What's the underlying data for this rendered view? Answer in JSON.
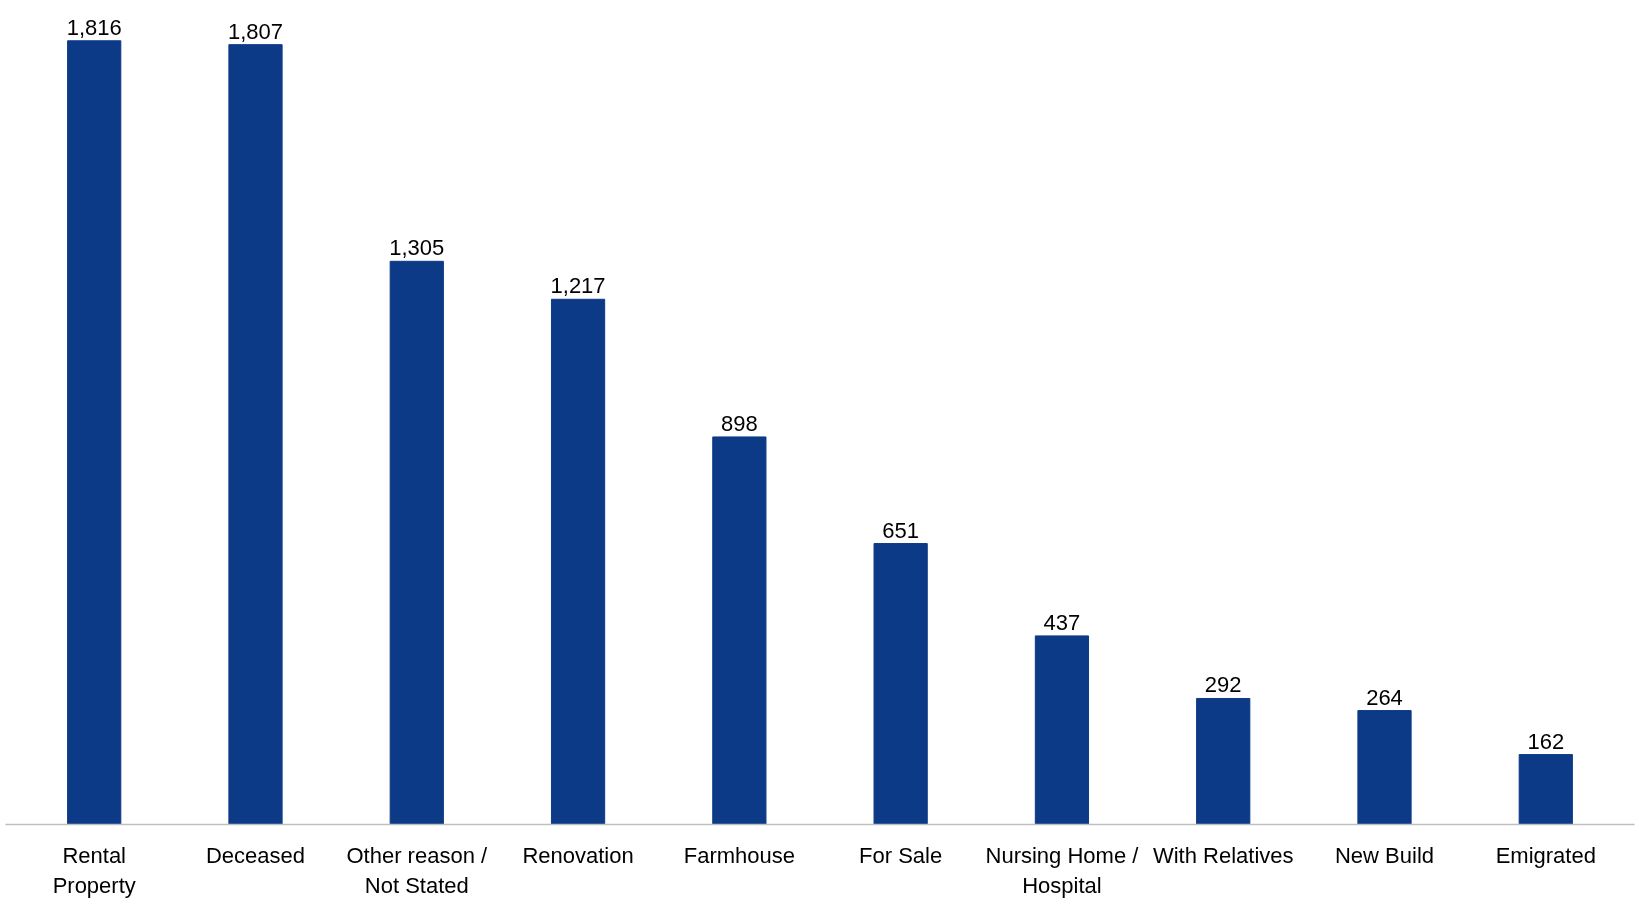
{
  "chart_data": {
    "type": "bar",
    "categories": [
      "Rental Property",
      "Deceased",
      "Other reason / Not Stated",
      "Renovation",
      "Farmhouse",
      "For Sale",
      "Nursing Home / Hospital",
      "With Relatives",
      "New Build",
      "Emigrated"
    ],
    "values": [
      1816,
      1807,
      1305,
      1217,
      898,
      651,
      437,
      292,
      264,
      162
    ],
    "color": "#0d3a87",
    "value_labels": [
      "1,816",
      "1,807",
      "1,305",
      "1,217",
      "898",
      "651",
      "437",
      "292",
      "264",
      "162"
    ],
    "grid": false
  }
}
